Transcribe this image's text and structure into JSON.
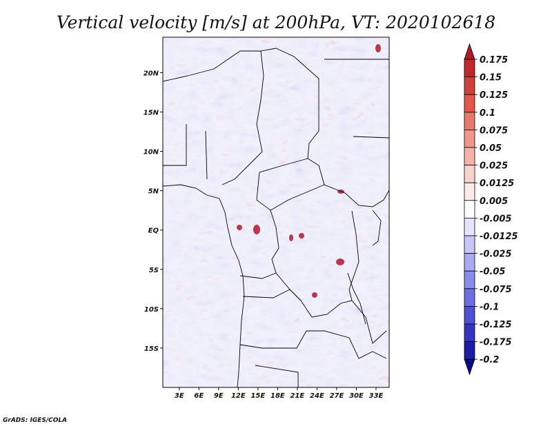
{
  "chart_data": {
    "type": "heatmap",
    "title": "Vertical velocity [m/s] at 200hPa, VT: 2020102618",
    "x": {
      "tick_labels": [
        "3E",
        "6E",
        "9E",
        "12E",
        "15E",
        "18E",
        "21E",
        "24E",
        "27E",
        "30E",
        "33E"
      ],
      "tick_values": [
        3,
        6,
        9,
        12,
        15,
        18,
        21,
        24,
        27,
        30,
        33
      ],
      "range": [
        0.5,
        35
      ]
    },
    "y": {
      "tick_labels": [
        "20N",
        "15N",
        "10N",
        "5N",
        "EQ",
        "5S",
        "10S",
        "15S"
      ],
      "tick_values": [
        20,
        15,
        10,
        5,
        0,
        -5,
        -10,
        -15
      ],
      "range": [
        -20,
        24.5
      ]
    },
    "colorbar": {
      "labels": [
        "0.175",
        "0.15",
        "0.125",
        "0.1",
        "0.075",
        "0.05",
        "0.025",
        "0.0125",
        "0.005",
        "-0.005",
        "-0.0125",
        "-0.025",
        "-0.05",
        "-0.075",
        "-0.1",
        "-0.125",
        "-0.175",
        "-0.2"
      ],
      "colors": [
        "#b2182b",
        "#c0282c",
        "#d0403a",
        "#dd5a4c",
        "#e77a6a",
        "#ee978a",
        "#f4b4aa",
        "#f9d4cd",
        "#fcebe7",
        "#ffffff",
        "#e4e4fb",
        "#c8c8f6",
        "#aaaaf0",
        "#8c8ce9",
        "#6e6ee0",
        "#5050d4",
        "#3434c0",
        "#1c1ca6",
        "#0a0a88"
      ],
      "extend": "both"
    },
    "credit": "GrADS: IGES/COLA"
  }
}
